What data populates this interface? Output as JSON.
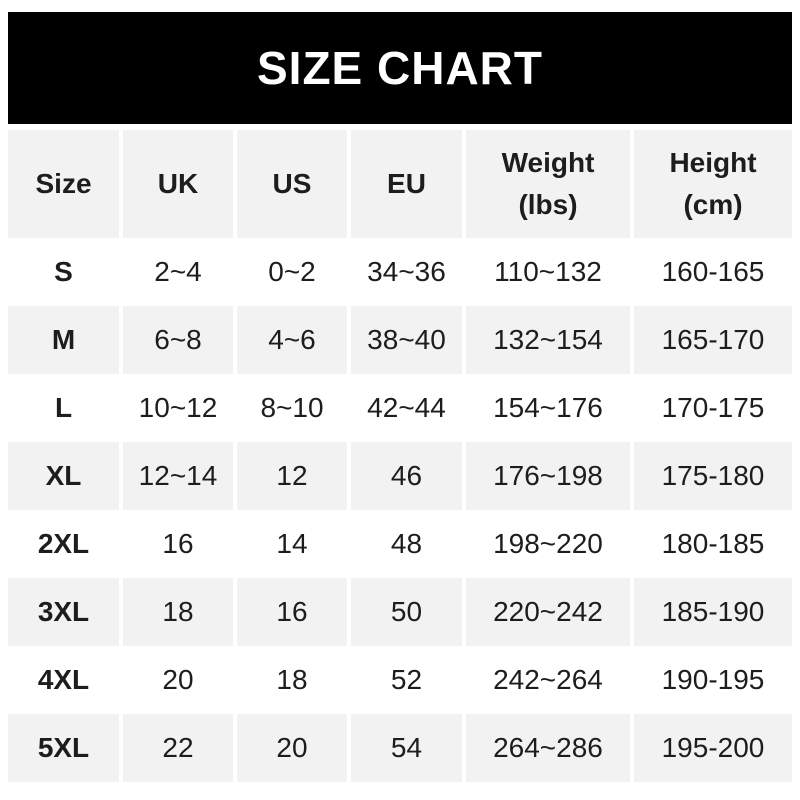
{
  "banner": {
    "title": "SIZE CHART"
  },
  "colors": {
    "banner_bg": "#000000",
    "banner_text": "#ffffff",
    "header_row_bg": "#f2f2f2",
    "alt_row_bg": "#f2f2f2",
    "row_bg": "#ffffff",
    "text": "#1d1d1f"
  },
  "table": {
    "columns": [
      {
        "label": "Size",
        "sub": ""
      },
      {
        "label": "UK",
        "sub": ""
      },
      {
        "label": "US",
        "sub": ""
      },
      {
        "label": "EU",
        "sub": ""
      },
      {
        "label": "Weight",
        "sub": "(lbs)"
      },
      {
        "label": "Height",
        "sub": "(cm)"
      }
    ],
    "rows": [
      {
        "size": "S",
        "uk": "2~4",
        "us": "0~2",
        "eu": "34~36",
        "weight": "110~132",
        "height": "160-165"
      },
      {
        "size": "M",
        "uk": "6~8",
        "us": "4~6",
        "eu": "38~40",
        "weight": "132~154",
        "height": "165-170"
      },
      {
        "size": "L",
        "uk": "10~12",
        "us": "8~10",
        "eu": "42~44",
        "weight": "154~176",
        "height": "170-175"
      },
      {
        "size": "XL",
        "uk": "12~14",
        "us": "12",
        "eu": "46",
        "weight": "176~198",
        "height": "175-180"
      },
      {
        "size": "2XL",
        "uk": "16",
        "us": "14",
        "eu": "48",
        "weight": "198~220",
        "height": "180-185"
      },
      {
        "size": "3XL",
        "uk": "18",
        "us": "16",
        "eu": "50",
        "weight": "220~242",
        "height": "185-190"
      },
      {
        "size": "4XL",
        "uk": "20",
        "us": "18",
        "eu": "52",
        "weight": "242~264",
        "height": "190-195"
      },
      {
        "size": "5XL",
        "uk": "22",
        "us": "20",
        "eu": "54",
        "weight": "264~286",
        "height": "195-200"
      }
    ]
  },
  "chart_data": {
    "type": "table",
    "title": "SIZE CHART",
    "columns": [
      "Size",
      "UK",
      "US",
      "EU",
      "Weight (lbs)",
      "Height (cm)"
    ],
    "rows": [
      [
        "S",
        "2~4",
        "0~2",
        "34~36",
        "110~132",
        "160-165"
      ],
      [
        "M",
        "6~8",
        "4~6",
        "38~40",
        "132~154",
        "165-170"
      ],
      [
        "L",
        "10~12",
        "8~10",
        "42~44",
        "154~176",
        "170-175"
      ],
      [
        "XL",
        "12~14",
        "12",
        "46",
        "176~198",
        "175-180"
      ],
      [
        "2XL",
        "16",
        "14",
        "48",
        "198~220",
        "180-185"
      ],
      [
        "3XL",
        "18",
        "16",
        "50",
        "220~242",
        "185-190"
      ],
      [
        "4XL",
        "20",
        "18",
        "52",
        "242~264",
        "190-195"
      ],
      [
        "5XL",
        "22",
        "20",
        "54",
        "264~286",
        "195-200"
      ]
    ],
    "layout": {
      "header_bg": "#f2f2f2",
      "zebra": "alternating white / #f2f2f2",
      "column_separators": "white 4px gaps"
    }
  }
}
